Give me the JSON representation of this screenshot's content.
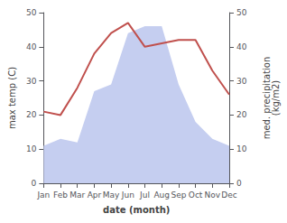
{
  "chart_data": {
    "type": "line",
    "xlabel": "date (month)",
    "ylabel": "max temp (C)",
    "y2label": "med. precipitation\n(kg/m2)",
    "categories": [
      "Jan",
      "Feb",
      "Mar",
      "Apr",
      "May",
      "Jun",
      "Jul",
      "Aug",
      "Sep",
      "Oct",
      "Nov",
      "Dec"
    ],
    "series": [
      {
        "type": "area",
        "axis": "y2",
        "color": "#c5cef0",
        "values": [
          11,
          13,
          12,
          27,
          29,
          44,
          46,
          46,
          29,
          18,
          13,
          11
        ]
      },
      {
        "type": "line",
        "color": "#c0504d",
        "values": [
          21,
          20,
          28,
          38,
          44,
          47,
          40,
          41,
          42,
          42,
          33,
          26
        ]
      }
    ],
    "ylim": [
      0,
      50
    ],
    "yticks": [
      0,
      10,
      20,
      30,
      40,
      50
    ],
    "y2lim": [
      0,
      50
    ],
    "y2ticks": [
      0,
      10,
      20,
      30,
      40,
      50
    ],
    "grid": false
  }
}
